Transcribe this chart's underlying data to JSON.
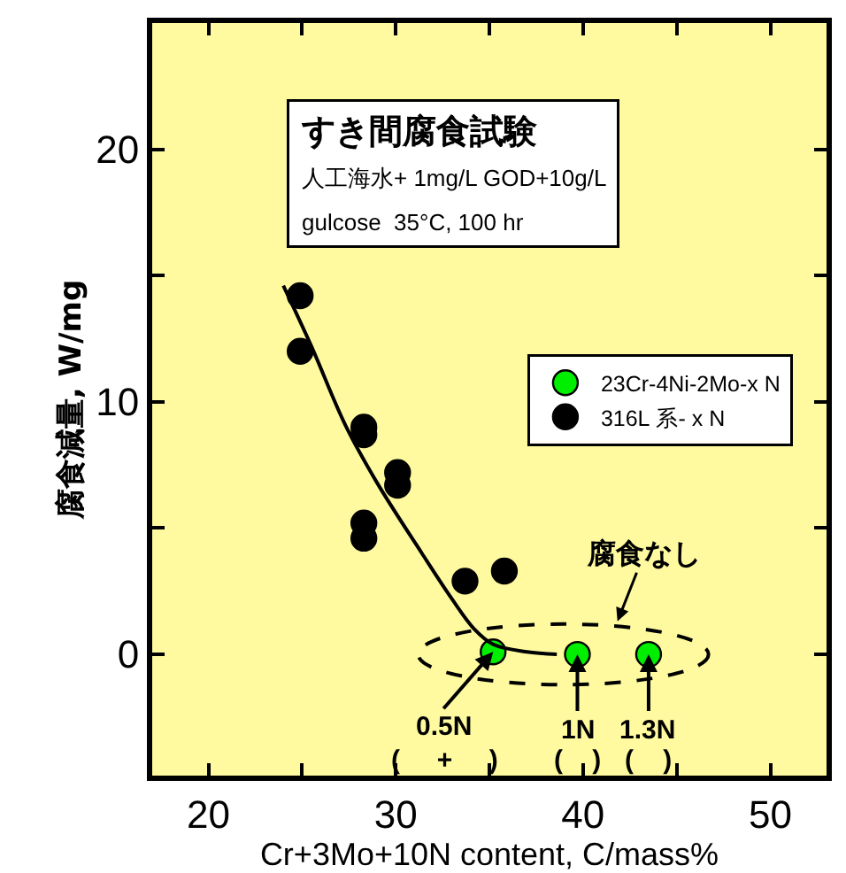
{
  "chart_data": {
    "type": "scatter",
    "xlabel": "Cr+3Mo+10N content, C/mass%",
    "ylabel": "腐食減量, W/mg",
    "xlim": [
      17,
      53
    ],
    "ylim": [
      -4.8,
      25
    ],
    "xticks": [
      20,
      {
        "value": 25,
        "label": null
      },
      30,
      {
        "value": 35,
        "label": null
      },
      40,
      {
        "value": 45,
        "label": null
      },
      50
    ],
    "yticks": [
      0,
      {
        "value": 5,
        "label": null
      },
      10,
      {
        "value": 15,
        "label": null
      },
      20
    ],
    "grid": false,
    "legend": "right",
    "marker": "circle",
    "series": [
      {
        "name": "23Cr-4Ni-2Mo-x N",
        "color": "#00ee00",
        "x": [
          35.2,
          39.7,
          43.5
        ],
        "values": [
          0.1,
          0,
          0
        ]
      },
      {
        "name": "316L 系- x N",
        "color": "#000000",
        "x": [
          24.9,
          24.9,
          28.3,
          28.3,
          30.1,
          30.1,
          28.3,
          28.3,
          33.7,
          35.8
        ],
        "values": [
          14.2,
          12.0,
          9.0,
          8.7,
          7.2,
          6.7,
          5.2,
          4.6,
          2.9,
          3.3
        ]
      },
      {
        "type": "line",
        "color": "#000000",
        "line_style": "solid",
        "marker": "none",
        "x": [
          24.0,
          25.5,
          27.3,
          29.0,
          31.4,
          33.0,
          34.2,
          35.2,
          37.0,
          38.6
        ],
        "values": [
          14.6,
          12.2,
          9.1,
          6.8,
          4.0,
          2.2,
          1.0,
          0.4,
          0.1,
          0
        ]
      }
    ],
    "annotations": [
      "すき間腐食試験",
      "人工海水+ 1mg/L GOD+10g/L",
      "gulcose  35°C, 100 hr",
      "腐食なし",
      {
        "text": "0.5N",
        "x": 35.2,
        "y": 0.1
      },
      {
        "text": "1N",
        "x": 39.7,
        "y": 0
      },
      {
        "text": "1.3N",
        "x": 43.5,
        "y": 0
      },
      "(     +     )",
      "(    )",
      "(    )"
    ]
  }
}
